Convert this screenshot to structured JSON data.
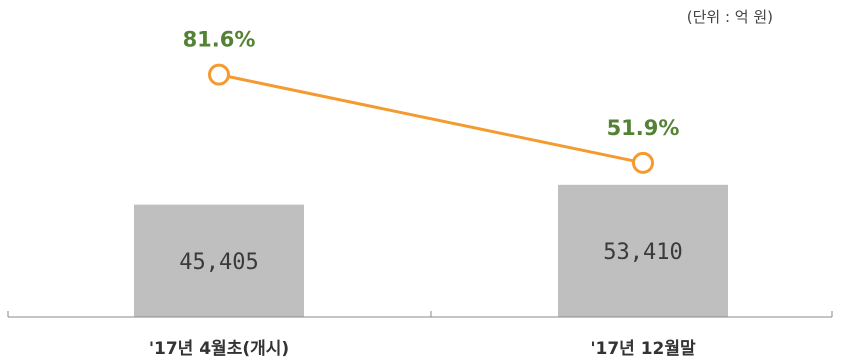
{
  "unit_note": "(단위 : 억 원)",
  "colors": {
    "bar": "#bfbfbf",
    "line": "#f49a2f",
    "pct_text": "#548235",
    "axis": "#888888"
  },
  "chart_data": {
    "type": "bar",
    "categories": [
      "'17년 4월초(개시)",
      "'17년 12월말"
    ],
    "values": [
      45405,
      53410
    ],
    "value_labels": [
      "45,405",
      "53,410"
    ],
    "ylim": [
      0,
      120000
    ],
    "line_series": {
      "type": "line",
      "values": [
        81.6,
        51.9
      ],
      "labels": [
        "81.6%",
        "51.9%"
      ],
      "ylim": [
        0,
        100
      ]
    },
    "title": "",
    "xlabel": "",
    "ylabel": ""
  }
}
